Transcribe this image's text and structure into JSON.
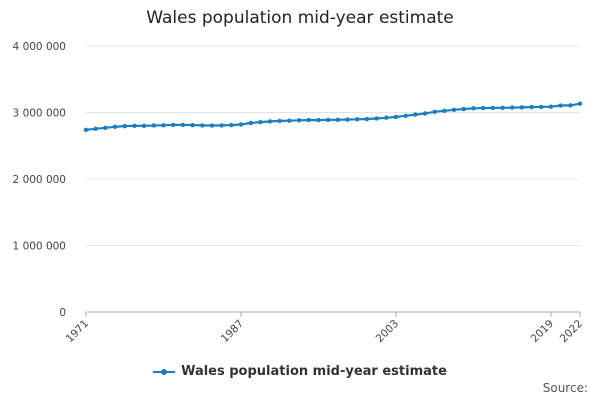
{
  "title": "Wales population mid-year estimate",
  "legend": {
    "label": "Wales population mid-year estimate"
  },
  "source_label": "Source:",
  "colors": {
    "series": "#1b7fbf",
    "grid": "#e4e4e4",
    "axis": "#aaaaaa"
  },
  "chart_data": {
    "type": "line",
    "title": "Wales population mid-year estimate",
    "xlabel": "",
    "ylabel": "",
    "ylim": [
      0,
      4000000
    ],
    "xlim": [
      1971,
      2022
    ],
    "y_ticks": [
      {
        "value": 0,
        "label": "0"
      },
      {
        "value": 1000000,
        "label": "1 000 000"
      },
      {
        "value": 2000000,
        "label": "2 000 000"
      },
      {
        "value": 3000000,
        "label": "3 000 000"
      },
      {
        "value": 4000000,
        "label": "4 000 000"
      }
    ],
    "x_tick_labels": [
      {
        "value": 1971,
        "label": "1971"
      },
      {
        "value": 1987,
        "label": "1987"
      },
      {
        "value": 2003,
        "label": "2003"
      },
      {
        "value": 2019,
        "label": "2019"
      },
      {
        "value": 2022,
        "label": "2022"
      }
    ],
    "series": [
      {
        "name": "Wales population mid-year estimate",
        "x": [
          1971,
          1972,
          1973,
          1974,
          1975,
          1976,
          1977,
          1978,
          1979,
          1980,
          1981,
          1982,
          1983,
          1984,
          1985,
          1986,
          1987,
          1988,
          1989,
          1990,
          1991,
          1992,
          1993,
          1994,
          1995,
          1996,
          1997,
          1998,
          1999,
          2000,
          2001,
          2002,
          2003,
          2004,
          2005,
          2006,
          2007,
          2008,
          2009,
          2010,
          2011,
          2012,
          2013,
          2014,
          2015,
          2016,
          2017,
          2018,
          2019,
          2020,
          2021,
          2022
        ],
        "values": [
          2740000,
          2755000,
          2770000,
          2785000,
          2795000,
          2799000,
          2800000,
          2805000,
          2808000,
          2813000,
          2813000,
          2810000,
          2806000,
          2804000,
          2806000,
          2810000,
          2820000,
          2842000,
          2855000,
          2866000,
          2873000,
          2877000,
          2883000,
          2886000,
          2886000,
          2888000,
          2890000,
          2894000,
          2898000,
          2902000,
          2910000,
          2921000,
          2934000,
          2950000,
          2968000,
          2985000,
          3010000,
          3025000,
          3040000,
          3052000,
          3063000,
          3066000,
          3069000,
          3071000,
          3074000,
          3077000,
          3081000,
          3084000,
          3087000,
          3105000,
          3107000,
          3132000
        ]
      }
    ]
  }
}
